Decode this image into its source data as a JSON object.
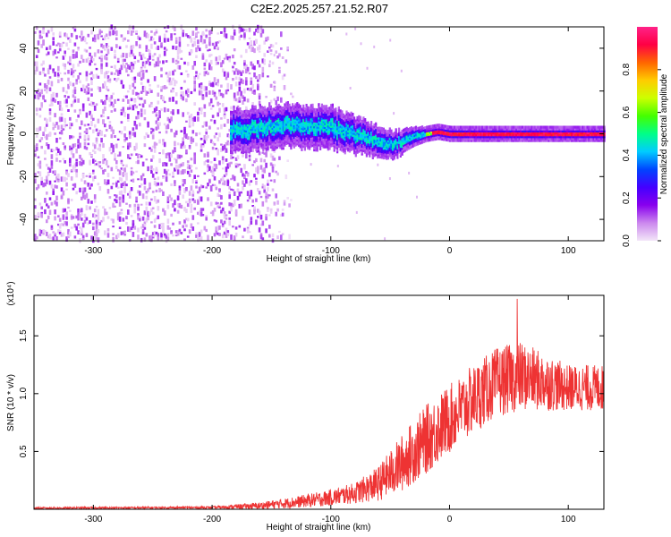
{
  "title": "C2E2.2025.257.21.52.R07",
  "chart_data": [
    {
      "type": "heatmap",
      "name": "spectrogram",
      "xlabel": "Height of straight line (km)",
      "ylabel": "Frequency (Hz)",
      "xlim": [
        -350,
        130
      ],
      "ylim": [
        -50,
        50
      ],
      "xticks": [
        -300,
        -200,
        -100,
        0,
        100
      ],
      "yticks": [
        -40,
        -20,
        0,
        20,
        40
      ],
      "colorbar": {
        "label": "Normalized spectral amplitude",
        "range": [
          0,
          1
        ],
        "ticks": [
          "0.0",
          "0.2",
          "0.4",
          "0.6",
          "0.8"
        ],
        "tick_values": [
          0.0,
          0.2,
          0.4,
          0.6,
          0.8
        ],
        "colors": [
          "#f3e6f8",
          "#cc88ee",
          "#8800ee",
          "#4400ff",
          "#0044ff",
          "#00ccff",
          "#00ff88",
          "#44ff00",
          "#ccff00",
          "#ffcc00",
          "#ff6600",
          "#ff0044",
          "#ff2288"
        ]
      },
      "features": {
        "noise_region_x": [
          -350,
          -160
        ],
        "signal_center_freq": [
          [
            -180,
            2
          ],
          [
            -140,
            4
          ],
          [
            -100,
            3
          ],
          [
            -70,
            -2
          ],
          [
            -50,
            -5
          ],
          [
            -30,
            -1
          ],
          [
            -10,
            1
          ],
          [
            0,
            0
          ],
          [
            130,
            0
          ]
        ],
        "signal_halfwidth_hz": [
          [
            -180,
            6
          ],
          [
            -100,
            6
          ],
          [
            -50,
            4
          ],
          [
            -20,
            2
          ],
          [
            130,
            2
          ]
        ]
      }
    },
    {
      "type": "line",
      "name": "snr",
      "xlabel": "Height of straight line (km)",
      "ylabel": "SNR (10 * v/v)",
      "y_multiplier": "(x10⁴)",
      "xlim": [
        -350,
        130
      ],
      "ylim": [
        0,
        1.85
      ],
      "xticks": [
        -300,
        -200,
        -100,
        0,
        100
      ],
      "yticks": [
        "0.5",
        "1.0",
        "1.5"
      ],
      "ytick_values": [
        0.5,
        1.0,
        1.5
      ],
      "color": "#ee3333",
      "envelope": {
        "x": [
          -350,
          -200,
          -160,
          -130,
          -100,
          -80,
          -60,
          -40,
          -20,
          0,
          20,
          40,
          60,
          80,
          100,
          130
        ],
        "mean": [
          0.01,
          0.015,
          0.03,
          0.06,
          0.1,
          0.14,
          0.22,
          0.4,
          0.6,
          0.78,
          0.95,
          1.1,
          1.15,
          1.1,
          1.05,
          1.05
        ],
        "amplitude": [
          0.008,
          0.01,
          0.03,
          0.05,
          0.07,
          0.09,
          0.15,
          0.25,
          0.3,
          0.3,
          0.3,
          0.3,
          0.3,
          0.25,
          0.2,
          0.2
        ]
      },
      "peak": {
        "x": 57,
        "y": 1.82
      }
    }
  ]
}
